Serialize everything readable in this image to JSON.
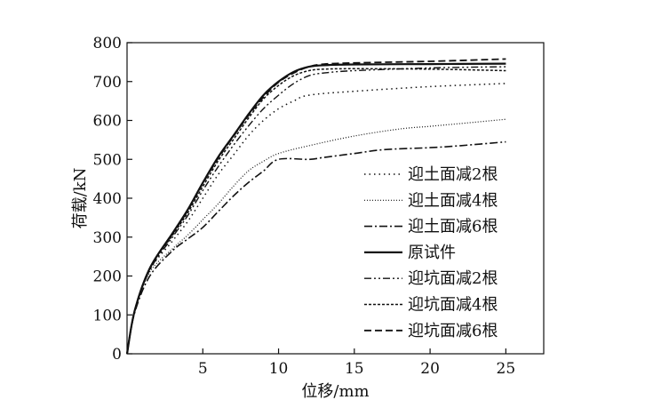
{
  "chart_data": {
    "type": "line",
    "xlabel": "位移/mm",
    "ylabel": "荷载/kN",
    "xlim": [
      0,
      27.5
    ],
    "ylim": [
      0,
      800
    ],
    "xticks": [
      5,
      10,
      15,
      20,
      25
    ],
    "yticks": [
      0,
      100,
      200,
      300,
      400,
      500,
      600,
      700,
      800
    ],
    "grid": false,
    "legend_position": "bottom-right",
    "series": [
      {
        "name": "迎土面减2根",
        "dash": "1.5 4",
        "width": 1.5,
        "points": [
          [
            0,
            0
          ],
          [
            0.5,
            110
          ],
          [
            1.5,
            215
          ],
          [
            3,
            290
          ],
          [
            4,
            340
          ],
          [
            5,
            400
          ],
          [
            6,
            460
          ],
          [
            7,
            510
          ],
          [
            8,
            560
          ],
          [
            9,
            600
          ],
          [
            10,
            630
          ],
          [
            11,
            650
          ],
          [
            12,
            665
          ],
          [
            15,
            675
          ],
          [
            20,
            687
          ],
          [
            25,
            695
          ]
        ]
      },
      {
        "name": "迎土面减4根",
        "dash": "1 2",
        "width": 1.2,
        "points": [
          [
            0,
            0
          ],
          [
            0.5,
            110
          ],
          [
            1.5,
            210
          ],
          [
            3,
            270
          ],
          [
            4,
            305
          ],
          [
            5,
            345
          ],
          [
            6,
            385
          ],
          [
            7,
            430
          ],
          [
            8,
            470
          ],
          [
            9,
            495
          ],
          [
            10,
            515
          ],
          [
            12,
            535
          ],
          [
            15,
            560
          ],
          [
            18,
            578
          ],
          [
            20,
            585
          ],
          [
            22,
            592
          ],
          [
            25,
            603
          ]
        ]
      },
      {
        "name": "迎土面减6根",
        "dash": "9 3 2 3",
        "width": 1.6,
        "points": [
          [
            0,
            0
          ],
          [
            0.5,
            105
          ],
          [
            1.5,
            200
          ],
          [
            3,
            265
          ],
          [
            4,
            295
          ],
          [
            5,
            325
          ],
          [
            6,
            365
          ],
          [
            7,
            405
          ],
          [
            8,
            440
          ],
          [
            9,
            470
          ],
          [
            10,
            500
          ],
          [
            12,
            500
          ],
          [
            13,
            505
          ],
          [
            15,
            515
          ],
          [
            17,
            525
          ],
          [
            20,
            530
          ],
          [
            22,
            535
          ],
          [
            25,
            545
          ]
        ]
      },
      {
        "name": "原试件",
        "dash": "",
        "width": 2.2,
        "points": [
          [
            0,
            0
          ],
          [
            0.5,
            110
          ],
          [
            1.5,
            220
          ],
          [
            3,
            310
          ],
          [
            4,
            370
          ],
          [
            5,
            440
          ],
          [
            6,
            505
          ],
          [
            7,
            560
          ],
          [
            8,
            615
          ],
          [
            9,
            665
          ],
          [
            10,
            700
          ],
          [
            11,
            725
          ],
          [
            12,
            738
          ],
          [
            13,
            742
          ],
          [
            15,
            744
          ],
          [
            20,
            745
          ],
          [
            25,
            746
          ]
        ]
      },
      {
        "name": "迎坑面减2根",
        "dash": "8 3 2 3 2 3",
        "width": 1.4,
        "points": [
          [
            0,
            0
          ],
          [
            0.5,
            108
          ],
          [
            1.5,
            215
          ],
          [
            3,
            300
          ],
          [
            4,
            355
          ],
          [
            5,
            420
          ],
          [
            6,
            480
          ],
          [
            7,
            535
          ],
          [
            8,
            585
          ],
          [
            9,
            630
          ],
          [
            10,
            665
          ],
          [
            11,
            695
          ],
          [
            12,
            715
          ],
          [
            13,
            722
          ],
          [
            15,
            728
          ],
          [
            20,
            735
          ],
          [
            25,
            738
          ]
        ]
      },
      {
        "name": "迎坑面减4根",
        "dash": "3 2",
        "width": 1.5,
        "points": [
          [
            0,
            0
          ],
          [
            0.5,
            108
          ],
          [
            1.5,
            218
          ],
          [
            3,
            305
          ],
          [
            4,
            362
          ],
          [
            5,
            430
          ],
          [
            6,
            495
          ],
          [
            7,
            550
          ],
          [
            8,
            605
          ],
          [
            9,
            655
          ],
          [
            10,
            690
          ],
          [
            11,
            715
          ],
          [
            12,
            728
          ],
          [
            13,
            732
          ],
          [
            15,
            733
          ],
          [
            20,
            732
          ],
          [
            25,
            728
          ]
        ]
      },
      {
        "name": "迎坑面减6根",
        "dash": "8 4",
        "width": 1.8,
        "points": [
          [
            0,
            0
          ],
          [
            0.5,
            110
          ],
          [
            1.5,
            220
          ],
          [
            3,
            308
          ],
          [
            4,
            368
          ],
          [
            5,
            438
          ],
          [
            6,
            502
          ],
          [
            7,
            558
          ],
          [
            8,
            612
          ],
          [
            9,
            660
          ],
          [
            10,
            698
          ],
          [
            11,
            722
          ],
          [
            12,
            738
          ],
          [
            13,
            745
          ],
          [
            15,
            748
          ],
          [
            20,
            752
          ],
          [
            25,
            758
          ]
        ]
      }
    ]
  }
}
